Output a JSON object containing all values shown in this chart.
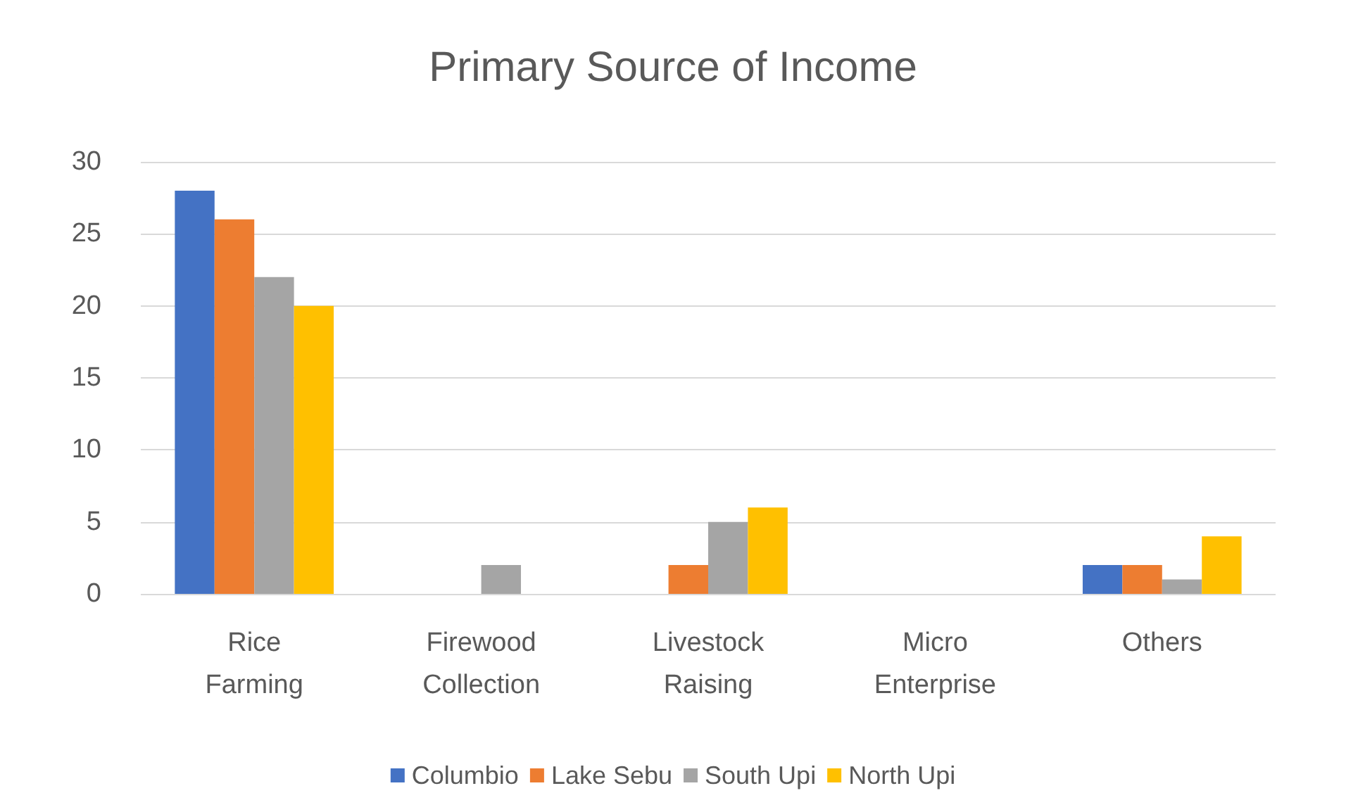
{
  "chart_data": {
    "type": "bar",
    "title": "Primary Source of Income",
    "categories": [
      "Rice Farming",
      "Firewood Collection",
      "Livestock Raising",
      "Micro Enterprise",
      "Others"
    ],
    "series": [
      {
        "name": "Columbio",
        "color": "#4472c4",
        "values": [
          28,
          0,
          0,
          0,
          2
        ]
      },
      {
        "name": "Lake Sebu",
        "color": "#ed7d31",
        "values": [
          26,
          0,
          2,
          0,
          2
        ]
      },
      {
        "name": "South Upi",
        "color": "#a5a5a5",
        "values": [
          22,
          2,
          5,
          0,
          1
        ]
      },
      {
        "name": "North Upi",
        "color": "#ffc000",
        "values": [
          20,
          0,
          6,
          0,
          4
        ]
      }
    ],
    "ylim": [
      0,
      30
    ],
    "yticks": [
      0,
      5,
      10,
      15,
      20,
      25,
      30
    ],
    "grid": "y",
    "legend": "bottom"
  }
}
